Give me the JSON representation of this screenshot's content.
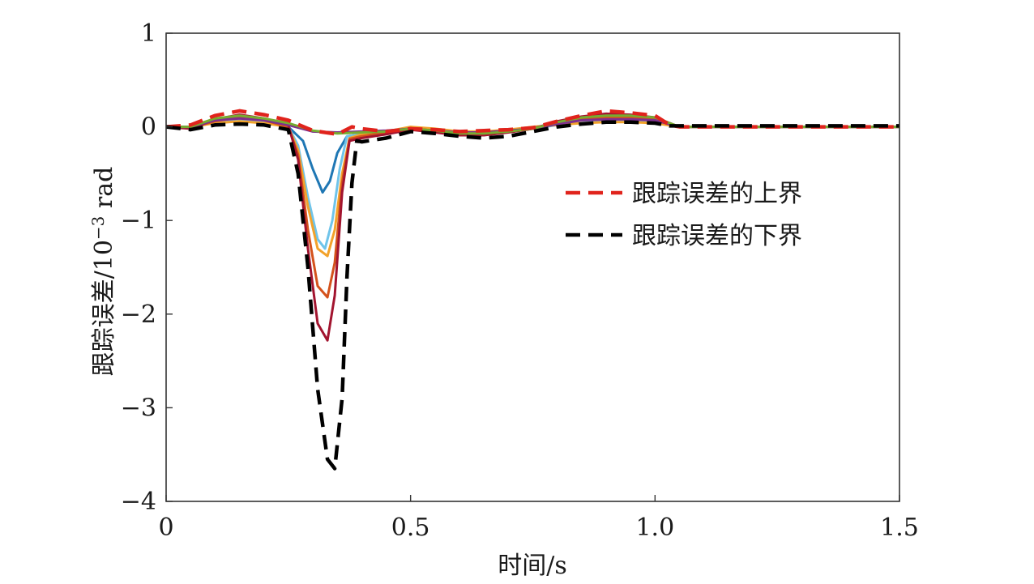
{
  "chart_data": {
    "type": "line",
    "title": "",
    "xlabel": "时间/s",
    "ylabel": "跟踪误差/10",
    "ylabel_exp": "−3",
    "ylabel_unit": " rad",
    "xlim": [
      0,
      1.5
    ],
    "ylim": [
      -4,
      1
    ],
    "xticks": [
      {
        "value": 0,
        "label": "0"
      },
      {
        "value": 0.5,
        "label": "0.5"
      },
      {
        "value": 1.0,
        "label": "1.0"
      },
      {
        "value": 1.5,
        "label": "1.5"
      }
    ],
    "yticks": [
      {
        "value": 1,
        "label": "1"
      },
      {
        "value": 0,
        "label": "0"
      },
      {
        "value": -1,
        "label": "−1"
      },
      {
        "value": -2,
        "label": "−2"
      },
      {
        "value": -3,
        "label": "−3"
      },
      {
        "value": -4,
        "label": "−4"
      }
    ],
    "grid": false,
    "legend_position": "right",
    "legend": [
      {
        "label": "跟踪误差的上界",
        "color": "#e0231c",
        "dash": true
      },
      {
        "label": "跟踪误差的下界",
        "color": "#000000",
        "dash": true
      }
    ],
    "series": [
      {
        "name": "跟踪误差的上界",
        "color": "#e0231c",
        "dashed": true,
        "x": [
          0,
          0.05,
          0.1,
          0.15,
          0.2,
          0.25,
          0.3,
          0.35,
          0.38,
          0.4,
          0.45,
          0.5,
          0.55,
          0.6,
          0.65,
          0.7,
          0.75,
          0.8,
          0.85,
          0.9,
          0.95,
          1.0,
          1.03,
          1.05,
          1.1,
          1.2,
          1.3,
          1.4,
          1.5
        ],
        "y": [
          0.0,
          0.02,
          0.12,
          0.17,
          0.13,
          0.07,
          -0.04,
          -0.08,
          0.0,
          -0.02,
          -0.05,
          -0.02,
          -0.03,
          -0.05,
          -0.04,
          -0.03,
          -0.01,
          0.06,
          0.12,
          0.17,
          0.15,
          0.12,
          0.02,
          0.0,
          0.0,
          0.0,
          0.0,
          0.0,
          0.0
        ]
      },
      {
        "name": "跟踪误差的下界",
        "color": "#000000",
        "dashed": true,
        "x": [
          0,
          0.05,
          0.1,
          0.15,
          0.2,
          0.25,
          0.27,
          0.29,
          0.31,
          0.33,
          0.345,
          0.36,
          0.37,
          0.38,
          0.39,
          0.4,
          0.45,
          0.5,
          0.55,
          0.6,
          0.65,
          0.7,
          0.75,
          0.8,
          0.85,
          0.9,
          0.95,
          1.0,
          1.03,
          1.05,
          1.1,
          1.2,
          1.3,
          1.4,
          1.5
        ],
        "y": [
          0.0,
          -0.03,
          0.02,
          0.03,
          0.02,
          -0.03,
          -0.5,
          -1.5,
          -2.8,
          -3.55,
          -3.65,
          -2.9,
          -1.6,
          -0.6,
          -0.15,
          -0.16,
          -0.12,
          -0.05,
          -0.07,
          -0.1,
          -0.12,
          -0.1,
          -0.05,
          0.0,
          0.03,
          0.05,
          0.05,
          0.04,
          0.01,
          0.01,
          0.01,
          0.01,
          0.01,
          0.01,
          0.01
        ]
      },
      {
        "name": "",
        "color": "#1f77b4",
        "dashed": false,
        "x": [
          0,
          0.05,
          0.1,
          0.15,
          0.2,
          0.25,
          0.28,
          0.3,
          0.32,
          0.335,
          0.35,
          0.37,
          0.4,
          0.45,
          0.5,
          0.55,
          0.6,
          0.65,
          0.7,
          0.75,
          0.8,
          0.85,
          0.9,
          0.95,
          1.0,
          1.05,
          1.1,
          1.2,
          1.3,
          1.4,
          1.5
        ],
        "y": [
          0.0,
          0.0,
          0.06,
          0.1,
          0.06,
          0.0,
          -0.15,
          -0.45,
          -0.7,
          -0.58,
          -0.28,
          -0.1,
          -0.08,
          -0.06,
          -0.02,
          -0.03,
          -0.06,
          -0.07,
          -0.05,
          -0.02,
          0.03,
          0.07,
          0.09,
          0.09,
          0.07,
          0.0,
          0.0,
          0.0,
          0.0,
          0.0,
          0.0
        ]
      },
      {
        "name": "",
        "color": "#6fc4ea",
        "dashed": false,
        "x": [
          0,
          0.05,
          0.1,
          0.15,
          0.2,
          0.25,
          0.27,
          0.29,
          0.31,
          0.325,
          0.34,
          0.355,
          0.37,
          0.4,
          0.45,
          0.5,
          0.55,
          0.6,
          0.65,
          0.7,
          0.75,
          0.8,
          0.85,
          0.9,
          0.95,
          1.0,
          1.05,
          1.1,
          1.2,
          1.3,
          1.4,
          1.5
        ],
        "y": [
          0.0,
          0.0,
          0.05,
          0.08,
          0.05,
          0.0,
          -0.2,
          -0.75,
          -1.2,
          -1.3,
          -1.0,
          -0.45,
          -0.1,
          -0.08,
          -0.05,
          -0.02,
          -0.03,
          -0.05,
          -0.06,
          -0.04,
          -0.02,
          0.02,
          0.05,
          0.06,
          0.06,
          0.05,
          0.0,
          0.0,
          0.0,
          0.0,
          0.0,
          0.0
        ]
      },
      {
        "name": "",
        "color": "#f2a22b",
        "dashed": false,
        "x": [
          0,
          0.05,
          0.1,
          0.15,
          0.2,
          0.25,
          0.27,
          0.29,
          0.31,
          0.33,
          0.345,
          0.36,
          0.375,
          0.4,
          0.45,
          0.5,
          0.55,
          0.6,
          0.65,
          0.7,
          0.75,
          0.8,
          0.85,
          0.9,
          0.95,
          1.0,
          1.05,
          1.1,
          1.2,
          1.3,
          1.4,
          1.5
        ],
        "y": [
          0.0,
          0.0,
          0.04,
          0.06,
          0.04,
          0.0,
          -0.25,
          -0.85,
          -1.3,
          -1.38,
          -1.1,
          -0.5,
          -0.12,
          -0.08,
          -0.05,
          0.0,
          -0.02,
          -0.05,
          -0.05,
          -0.03,
          0.0,
          0.02,
          0.04,
          0.05,
          0.05,
          0.04,
          0.0,
          0.0,
          0.0,
          0.0,
          0.0,
          0.0
        ]
      },
      {
        "name": "",
        "color": "#d4521c",
        "dashed": false,
        "x": [
          0,
          0.05,
          0.1,
          0.15,
          0.2,
          0.25,
          0.27,
          0.29,
          0.31,
          0.33,
          0.345,
          0.36,
          0.375,
          0.4,
          0.45,
          0.5,
          0.55,
          0.6,
          0.65,
          0.7,
          0.75,
          0.8,
          0.85,
          0.9,
          0.95,
          1.0,
          1.05,
          1.1,
          1.2,
          1.3,
          1.4,
          1.5
        ],
        "y": [
          0.0,
          -0.01,
          0.06,
          0.1,
          0.07,
          0.0,
          -0.3,
          -1.1,
          -1.7,
          -1.82,
          -1.45,
          -0.6,
          -0.13,
          -0.1,
          -0.06,
          -0.02,
          -0.04,
          -0.07,
          -0.07,
          -0.05,
          -0.01,
          0.04,
          0.08,
          0.1,
          0.1,
          0.08,
          0.0,
          0.0,
          0.0,
          0.0,
          0.0,
          0.0
        ]
      },
      {
        "name": "",
        "color": "#a2142f",
        "dashed": false,
        "x": [
          0,
          0.05,
          0.1,
          0.15,
          0.2,
          0.25,
          0.27,
          0.29,
          0.31,
          0.33,
          0.345,
          0.36,
          0.375,
          0.4,
          0.45,
          0.5,
          0.55,
          0.6,
          0.65,
          0.7,
          0.75,
          0.8,
          0.85,
          0.9,
          0.95,
          1.0,
          1.05,
          1.1,
          1.2,
          1.3,
          1.4,
          1.5
        ],
        "y": [
          0.0,
          -0.02,
          0.08,
          0.13,
          0.09,
          0.02,
          -0.35,
          -1.3,
          -2.1,
          -2.28,
          -1.8,
          -0.7,
          -0.15,
          -0.12,
          -0.08,
          -0.03,
          -0.06,
          -0.09,
          -0.09,
          -0.06,
          -0.02,
          0.06,
          0.11,
          0.14,
          0.13,
          0.1,
          0.0,
          0.0,
          0.0,
          0.0,
          0.0,
          0.0
        ]
      },
      {
        "name": "",
        "color": "#7e2f8e",
        "dashed": false,
        "x": [
          0,
          0.05,
          0.1,
          0.15,
          0.2,
          0.25,
          0.3,
          0.35,
          0.4,
          0.45,
          0.5,
          0.55,
          0.6,
          0.65,
          0.7,
          0.75,
          0.8,
          0.85,
          0.9,
          0.95,
          1.0,
          1.05,
          1.1,
          1.2,
          1.3,
          1.4,
          1.5
        ],
        "y": [
          0.0,
          0.0,
          0.07,
          0.09,
          0.07,
          0.02,
          -0.05,
          -0.06,
          -0.05,
          -0.04,
          -0.02,
          -0.04,
          -0.06,
          -0.06,
          -0.04,
          -0.02,
          0.03,
          0.07,
          0.08,
          0.08,
          0.07,
          0.0,
          0.0,
          0.0,
          0.0,
          0.0,
          0.0
        ]
      },
      {
        "name": "",
        "color": "#77ac30",
        "dashed": false,
        "x": [
          0,
          0.05,
          0.1,
          0.15,
          0.2,
          0.25,
          0.3,
          0.35,
          0.4,
          0.45,
          0.5,
          0.55,
          0.6,
          0.65,
          0.7,
          0.75,
          0.8,
          0.85,
          0.9,
          0.95,
          1.0,
          1.05,
          1.1,
          1.2,
          1.3,
          1.4,
          1.5
        ],
        "y": [
          0.0,
          0.0,
          0.09,
          0.12,
          0.09,
          0.04,
          -0.04,
          -0.07,
          -0.06,
          -0.05,
          -0.02,
          -0.04,
          -0.07,
          -0.07,
          -0.05,
          -0.02,
          0.05,
          0.1,
          0.12,
          0.12,
          0.1,
          0.0,
          0.0,
          0.0,
          0.0,
          0.0,
          0.0
        ]
      }
    ]
  }
}
